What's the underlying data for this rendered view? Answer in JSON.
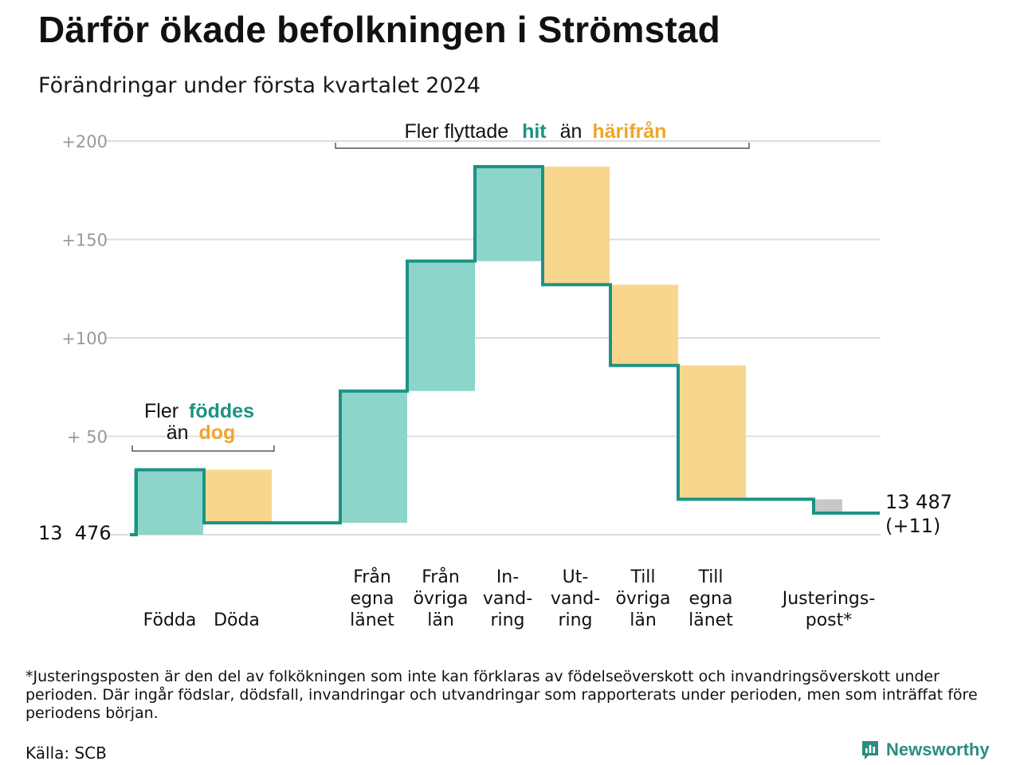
{
  "title": "Därför ökade befolkningen i Strömstad",
  "subtitle": "Förändringar under första kvartalet 2024",
  "colors": {
    "accent_teal": "#1a9384",
    "in_fill": "#8dd4cb",
    "out_fill": "#f9d68e",
    "out_text": "#f0a52a",
    "adjust_fill": "#c8c8c8",
    "grid": "#dddddd",
    "tick_text": "#999999"
  },
  "annotations": {
    "births": {
      "pre": "Fler",
      "in_word": "föddes",
      "line2_pre": "än",
      "out_word": "dog"
    },
    "migration": {
      "pre": "Fler flyttade",
      "in_word": "hit",
      "mid": "än",
      "out_word": "härifrån"
    }
  },
  "start_label": "13  476",
  "end_label": {
    "value": "13 487",
    "change": "(+11)"
  },
  "chart_data": {
    "type": "waterfall",
    "title": "Därför ökade befolkningen i Strömstad",
    "subtitle": "Förändringar under första kvartalet 2024",
    "start_population": 13476,
    "end_population": 13487,
    "net_change": 11,
    "ylim": [
      0,
      200
    ],
    "yticks": [
      {
        "value": 50,
        "label": "+  50"
      },
      {
        "value": 100,
        "label": "+100"
      },
      {
        "value": 150,
        "label": "+150"
      },
      {
        "value": 200,
        "label": "+200"
      }
    ],
    "grid": true,
    "steps": [
      {
        "label_lines": [
          "Födda"
        ],
        "value": 33,
        "from": 0,
        "to": 33,
        "kind": "in"
      },
      {
        "label_lines": [
          "Döda"
        ],
        "value": -27,
        "from": 33,
        "to": 6,
        "kind": "out"
      },
      {
        "label_lines": [
          "Från",
          "egna",
          "länet"
        ],
        "value": 67,
        "from": 6,
        "to": 73,
        "kind": "in"
      },
      {
        "label_lines": [
          "Från",
          "övriga",
          "län"
        ],
        "value": 66,
        "from": 73,
        "to": 139,
        "kind": "in"
      },
      {
        "label_lines": [
          "In-",
          "vand-",
          "ring"
        ],
        "value": 48,
        "from": 139,
        "to": 187,
        "kind": "in"
      },
      {
        "label_lines": [
          "Ut-",
          "vand-",
          "ring"
        ],
        "value": -60,
        "from": 187,
        "to": 127,
        "kind": "out"
      },
      {
        "label_lines": [
          "Till",
          "övriga",
          "län"
        ],
        "value": -41,
        "from": 127,
        "to": 86,
        "kind": "out"
      },
      {
        "label_lines": [
          "Till",
          "egna",
          "länet"
        ],
        "value": -68,
        "from": 86,
        "to": 18,
        "kind": "out"
      },
      {
        "label_lines": [
          "Justerings-",
          "post*"
        ],
        "value": -7,
        "from": 18,
        "to": 11,
        "kind": "adjust"
      }
    ]
  },
  "footnote": "*Justeringsposten är den del av folkökningen som inte kan förklaras av födelseöverskott och invandringsöverskott under perioden. Där ingår födslar, dödsfall, invandringar och utvandringar som rapporterats under perioden, men som inträffat före periodens början.",
  "source": "Källa: SCB",
  "brand": {
    "name": "Newsworthy",
    "icon": "newsworthy-logo-icon"
  }
}
